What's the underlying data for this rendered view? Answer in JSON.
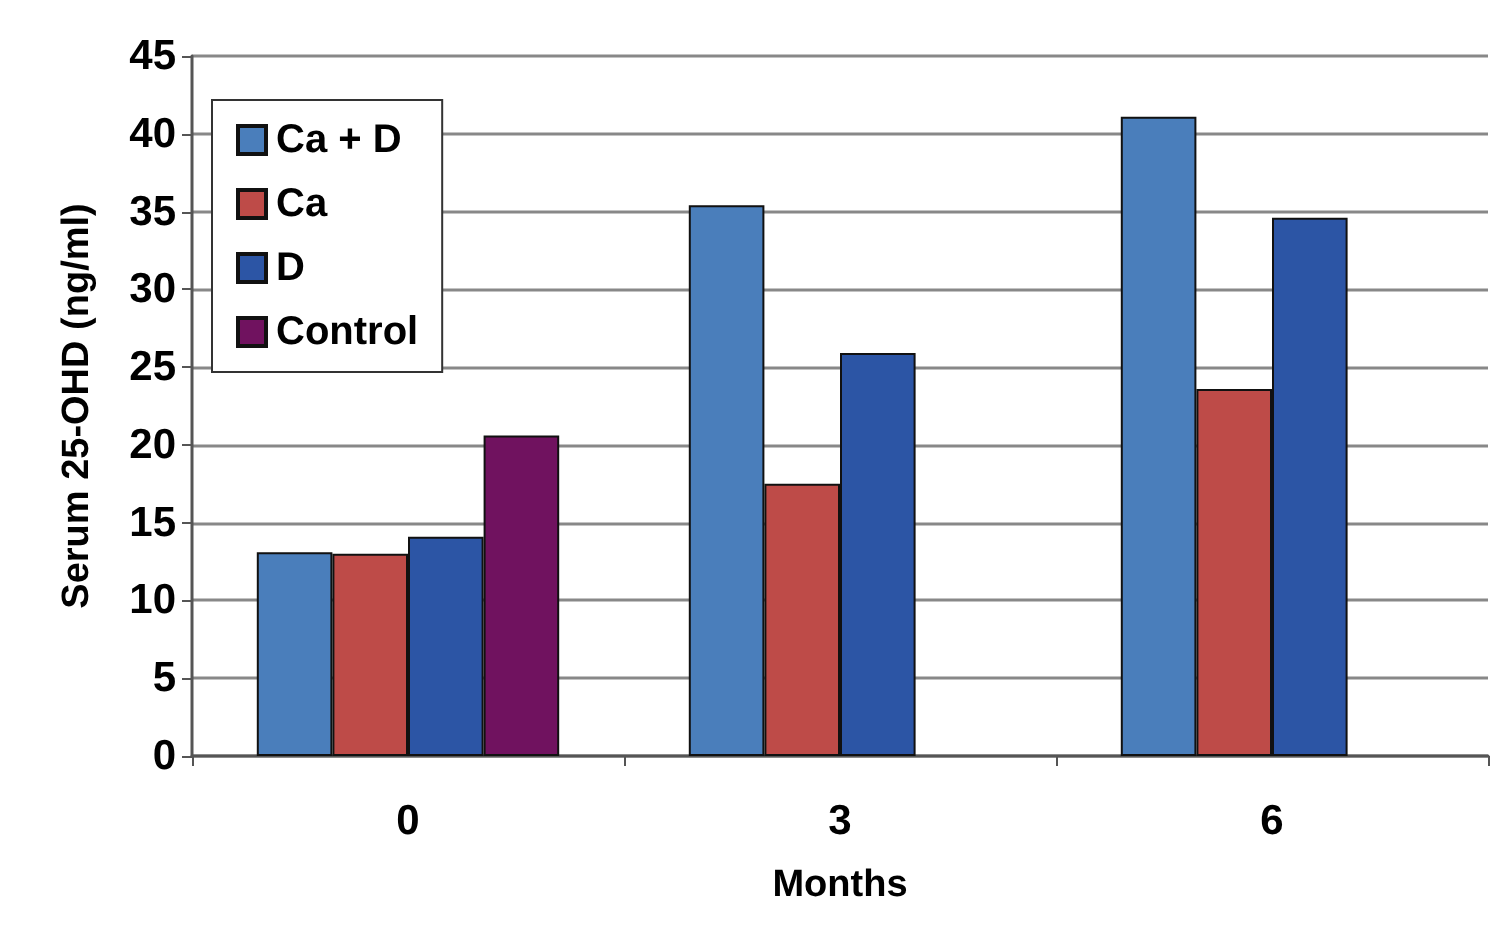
{
  "chart_data": {
    "type": "bar",
    "xlabel": "Months",
    "ylabel": "Serum 25-OHD (ng/ml)",
    "categories": [
      "0",
      "3",
      "6"
    ],
    "series": [
      {
        "name": "Ca + D",
        "color": "#4a7ebb",
        "values": [
          13.1,
          35.4,
          41.1
        ]
      },
      {
        "name": "Ca",
        "color": "#be4b48",
        "values": [
          13.0,
          17.5,
          23.6
        ]
      },
      {
        "name": "D",
        "color": "#2c55a5",
        "values": [
          14.1,
          25.9,
          34.6
        ]
      },
      {
        "name": "Control",
        "color": "#70125f",
        "values": [
          20.6,
          null,
          null
        ]
      }
    ],
    "ylim": [
      0,
      45
    ],
    "yticks": [
      0,
      5,
      10,
      15,
      20,
      25,
      30,
      35,
      40,
      45
    ],
    "grid": "y",
    "legend": "top left"
  }
}
